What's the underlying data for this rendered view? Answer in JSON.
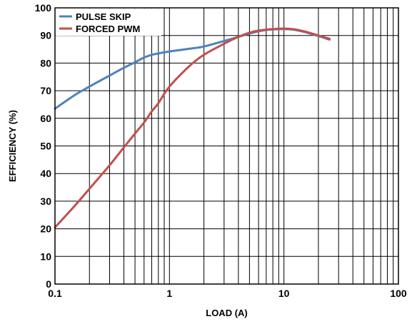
{
  "chart_data": {
    "type": "line",
    "title": "",
    "xlabel": "LOAD (A)",
    "ylabel": "EFFICIENCY (%)",
    "xscale": "log",
    "xlim": [
      0.1,
      100
    ],
    "ylim": [
      0,
      100
    ],
    "grid": true,
    "legend_position": "top-left",
    "x_tick_labels": [
      "0.1",
      "1",
      "10",
      "100"
    ],
    "y_tick_labels": [
      "0",
      "10",
      "20",
      "30",
      "40",
      "50",
      "60",
      "70",
      "80",
      "90",
      "100"
    ],
    "series": [
      {
        "name": "PULSE SKIP",
        "color": "#4f81bd",
        "x": [
          0.1,
          0.15,
          0.2,
          0.3,
          0.4,
          0.5,
          0.6,
          0.7,
          0.8,
          1.0,
          1.5,
          2.0,
          3.0,
          4.0,
          5.0,
          6.0,
          7.0,
          8.0,
          10.0,
          12.0,
          15.0,
          20.0,
          25.0
        ],
        "y": [
          63.5,
          68.5,
          71.5,
          75.5,
          78.3,
          80.3,
          82.0,
          83.0,
          83.5,
          84.2,
          85.2,
          86.0,
          88.0,
          89.5,
          90.7,
          91.5,
          92.0,
          92.2,
          92.3,
          92.1,
          91.3,
          89.8,
          88.5
        ]
      },
      {
        "name": "FORCED PWM",
        "color": "#c0504d",
        "x": [
          0.1,
          0.15,
          0.2,
          0.3,
          0.4,
          0.5,
          0.6,
          0.7,
          0.8,
          1.0,
          1.5,
          2.0,
          3.0,
          4.0,
          5.0,
          6.0,
          7.0,
          8.0,
          10.0,
          12.0,
          15.0,
          20.0,
          25.0
        ],
        "y": [
          20.5,
          28.5,
          34.5,
          43.0,
          49.5,
          54.5,
          58.5,
          62.5,
          65.5,
          71.5,
          79.0,
          83.0,
          87.0,
          89.5,
          91.0,
          91.8,
          92.1,
          92.3,
          92.5,
          92.3,
          91.5,
          90.0,
          88.8
        ]
      }
    ]
  }
}
